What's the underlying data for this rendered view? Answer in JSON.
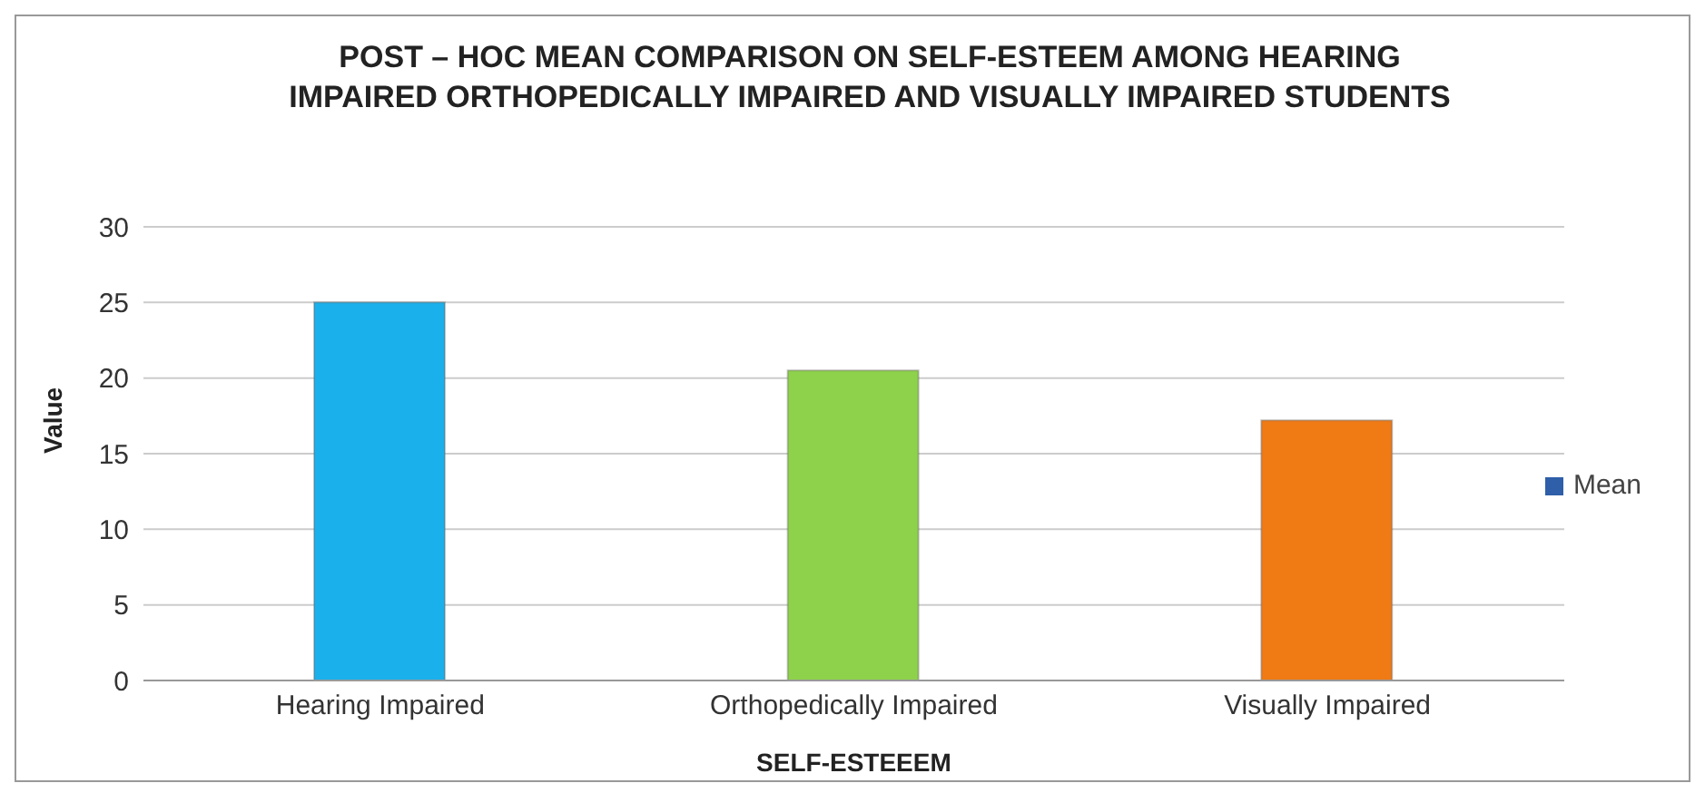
{
  "chart_data": {
    "type": "bar",
    "title": "POST – HOC MEAN COMPARISON ON SELF-ESTEEM AMONG HEARING IMPAIRED ORTHOPEDICALLY  IMPAIRED AND VISUALLY IMPAIRED STUDENTS",
    "xlabel": "SELF-ESTEEEM",
    "ylabel": "Value",
    "categories": [
      "Hearing Impaired",
      "Orthopedically Impaired",
      "Visually Impaired"
    ],
    "series": [
      {
        "name": "Mean",
        "color": "#2e5fa8",
        "colors": [
          "#1ab0ec",
          "#8ed14a",
          "#f07a14"
        ],
        "values": [
          25,
          20.5,
          17.2
        ]
      }
    ],
    "ylim": [
      0,
      30
    ],
    "yticks": [
      0,
      5,
      10,
      15,
      20,
      25,
      30
    ],
    "grid": "y",
    "legend": "right"
  }
}
